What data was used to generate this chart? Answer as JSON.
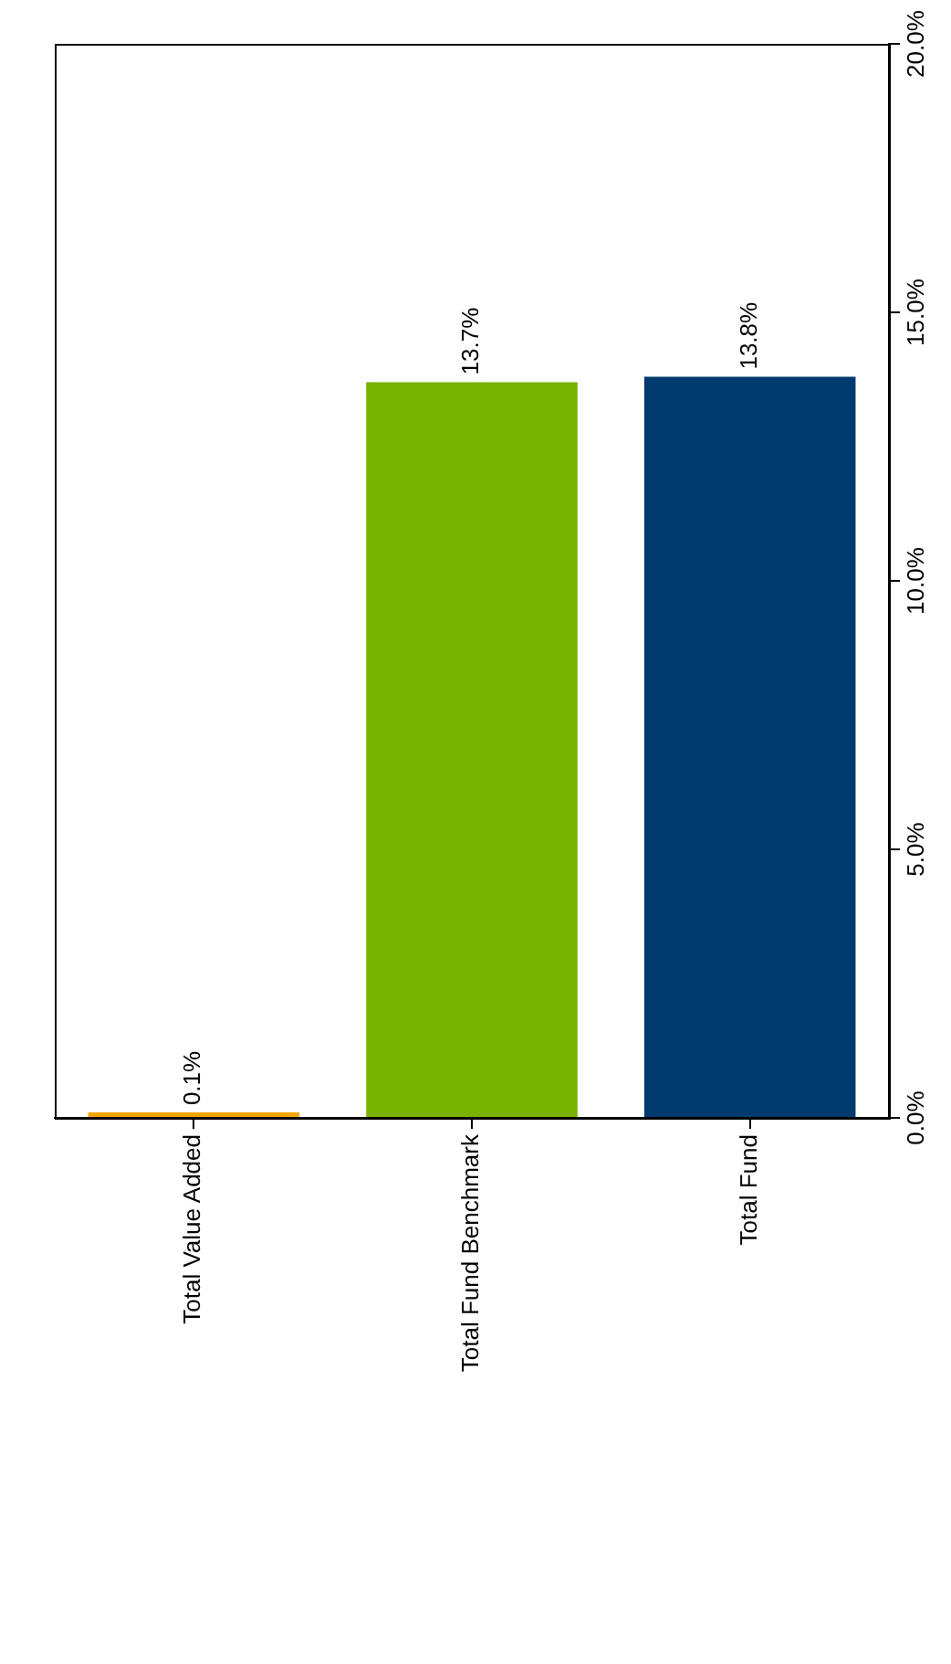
{
  "chart_data": {
    "type": "bar",
    "categories": [
      "Total Value Added",
      "Total Fund Benchmark",
      "Total Fund"
    ],
    "values": [
      0.1,
      13.7,
      13.8
    ],
    "colors": [
      "#f0a500",
      "#77b300",
      "#003a6e"
    ],
    "value_labels": [
      "0.1%",
      "13.7%",
      "13.8%"
    ],
    "ylim": [
      0,
      20
    ],
    "yticks": [
      {
        "value": 0,
        "label": "0.0%"
      },
      {
        "value": 5,
        "label": "5.0%"
      },
      {
        "value": 10,
        "label": "10.0%"
      },
      {
        "value": 15,
        "label": "15.0%"
      },
      {
        "value": 20,
        "label": "20.0%"
      }
    ],
    "grid": false,
    "legend": false
  }
}
